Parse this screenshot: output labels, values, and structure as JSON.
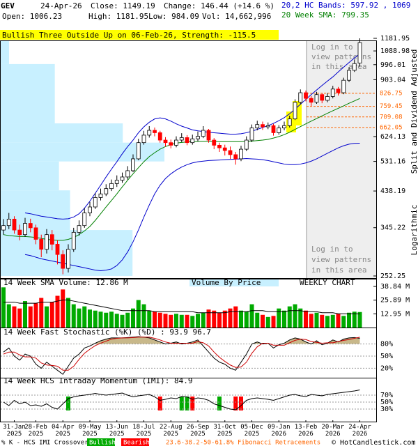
{
  "header": {
    "symbol": "GEV",
    "date": "24-Apr-26",
    "close": "Close: 1149.19",
    "change": "Change: 146.44 (+14.6 %)",
    "bands": "20,2 HC Bands: 597.92 , 1069",
    "open": "Open: 1006.23",
    "high": "High: 1181.95",
    "low": "Low: 984.09",
    "volume": "Vol: 14,662,996",
    "sma": "20 Week SMA: 799.35"
  },
  "pattern_banner": "Bullish Three Outside Up on 06-Feb-26, Strength: -115.5",
  "side_labels": [
    "Split and Dividend Adjusted",
    "Logarithmic"
  ],
  "pattern_notices": [
    [
      "Log in to",
      "view patterns",
      "in this area"
    ],
    [
      "Log in to",
      "view patterns",
      "in this area"
    ]
  ],
  "footer": {
    "crossover": "% K - HCS IMI Crossover:",
    "bullish": "Bullish",
    "bearish": "Bearish",
    "fibonacci": "23.6-38.2-50-61.8% Fibonacci Retracements",
    "copyright": "© HotCandlestick.com"
  },
  "chart_data": [
    {
      "type": "candlestick",
      "categories": [
        null,
        null,
        "31-Jan 2025",
        null,
        null,
        null,
        "28-Feb 2025",
        null,
        null,
        null,
        null,
        "04-Apr 2025",
        null,
        null,
        null,
        null,
        "09-May 2025",
        null,
        null,
        null,
        null,
        "13-Jun 2025",
        null,
        null,
        null,
        null,
        "18-Jul 2025",
        null,
        null,
        null,
        null,
        "22-Aug 2025",
        null,
        null,
        null,
        null,
        "26-Sep 2025",
        null,
        null,
        null,
        null,
        "31-Oct 2025",
        null,
        null,
        null,
        null,
        "05-Dec 2025",
        null,
        null,
        null,
        null,
        "09-Jan 2026",
        null,
        null,
        null,
        null,
        "13-Feb 2026",
        null,
        null,
        null,
        null,
        "20-Mar 2026",
        null,
        null,
        null,
        null,
        "24-Apr 2026"
      ],
      "open": [
        340,
        350,
        365,
        340,
        330,
        355,
        345,
        320,
        300,
        330,
        310,
        290,
        265,
        300,
        335,
        350,
        380,
        395,
        420,
        430,
        445,
        460,
        470,
        480,
        500,
        540,
        600,
        630,
        650,
        640,
        610,
        600,
        590,
        610,
        620,
        600,
        615,
        625,
        650,
        610,
        590,
        580,
        570,
        555,
        540,
        575,
        610,
        660,
        675,
        665,
        670,
        640,
        660,
        670,
        700,
        780,
        830,
        800,
        780,
        820,
        790,
        810,
        850,
        830,
        900,
        960,
        1006.23
      ],
      "high": [
        365,
        380,
        372,
        352,
        368,
        366,
        352,
        330,
        342,
        340,
        318,
        298,
        310,
        345,
        362,
        392,
        408,
        432,
        445,
        458,
        472,
        485,
        494,
        515,
        556,
        615,
        648,
        668,
        662,
        648,
        622,
        612,
        625,
        638,
        630,
        632,
        645,
        668,
        656,
        618,
        600,
        592,
        585,
        565,
        588,
        625,
        675,
        692,
        688,
        684,
        678,
        672,
        688,
        715,
        795,
        848,
        842,
        812,
        835,
        828,
        828,
        868,
        862,
        915,
        980,
        1030,
        1181.95
      ],
      "low": [
        330,
        342,
        332,
        318,
        325,
        335,
        310,
        285,
        292,
        298,
        272,
        255,
        258,
        295,
        328,
        345,
        372,
        390,
        412,
        424,
        438,
        450,
        462,
        472,
        495,
        535,
        592,
        620,
        625,
        600,
        585,
        578,
        582,
        602,
        590,
        592,
        605,
        618,
        600,
        575,
        565,
        552,
        540,
        520,
        532,
        568,
        602,
        650,
        652,
        655,
        628,
        632,
        650,
        662,
        695,
        770,
        785,
        762,
        772,
        775,
        780,
        800,
        815,
        822,
        890,
        950,
        984.09
      ],
      "close": [
        350,
        365,
        340,
        330,
        355,
        345,
        320,
        300,
        330,
        310,
        290,
        265,
        300,
        335,
        350,
        380,
        395,
        420,
        430,
        445,
        460,
        470,
        480,
        500,
        540,
        600,
        630,
        650,
        640,
        610,
        600,
        590,
        610,
        620,
        600,
        615,
        625,
        650,
        610,
        590,
        580,
        570,
        555,
        540,
        575,
        610,
        660,
        675,
        665,
        670,
        640,
        660,
        670,
        700,
        780,
        830,
        800,
        780,
        820,
        790,
        810,
        850,
        830,
        900,
        960,
        1003,
        1149.19
      ],
      "up_color": "#ffffff",
      "down_color": "#ff0000",
      "log_scale": true,
      "ylim": [
        252.25,
        1181.95
      ],
      "yticks": [
        1181.95,
        1088.98,
        996.01,
        903.04,
        624.13,
        531.16,
        438.19,
        345.22,
        252.25
      ],
      "series": [
        {
          "color": "#008000",
          "values": [
            330,
            328,
            327,
            326,
            326,
            325,
            324,
            322,
            320,
            319,
            318,
            318,
            320,
            324,
            330,
            338,
            348,
            362,
            378,
            395,
            412,
            430,
            450,
            470,
            490,
            510,
            530,
            548,
            562,
            575,
            585,
            592,
            598,
            601,
            603,
            604,
            605,
            605,
            605,
            605,
            604,
            604,
            604,
            604,
            604,
            605,
            606,
            608,
            610,
            613,
            618,
            624,
            632,
            642,
            654,
            666,
            678,
            690,
            702,
            714,
            726,
            738,
            750,
            762,
            775,
            787,
            799.35
          ]
        },
        {
          "color": "#0000cc",
          "values": [
            null,
            null,
            null,
            null,
            380,
            378,
            375,
            372,
            370,
            368,
            366,
            365,
            366,
            370,
            378,
            392,
            410,
            432,
            455,
            480,
            505,
            530,
            558,
            585,
            610,
            640,
            665,
            685,
            700,
            705,
            700,
            690,
            678,
            668,
            660,
            652,
            648,
            645,
            642,
            640,
            638,
            636,
            634,
            634,
            636,
            640,
            646,
            654,
            662,
            670,
            680,
            692,
            706,
            724,
            746,
            770,
            795,
            820,
            845,
            870,
            895,
            920,
            950,
            980,
            1010,
            1040,
            1069
          ]
        },
        {
          "color": "#0000cc",
          "values": [
            null,
            null,
            null,
            null,
            290,
            288,
            285,
            282,
            280,
            278,
            276,
            274,
            272,
            270,
            268,
            266,
            264,
            262,
            261,
            262,
            264,
            270,
            280,
            295,
            315,
            340,
            370,
            400,
            430,
            455,
            475,
            490,
            502,
            512,
            520,
            526,
            530,
            532,
            534,
            535,
            536,
            537,
            538,
            539,
            540,
            541,
            540,
            539,
            537,
            534,
            530,
            526,
            522,
            520,
            520,
            522,
            526,
            532,
            540,
            550,
            560,
            570,
            580,
            588,
            594,
            597,
            597.92
          ]
        }
      ],
      "fib_levels": [
        826.75,
        759.45,
        709.08,
        662.05
      ],
      "fib_color": "#ff6600",
      "volume_by_price": {
        "label": "Volume By Price",
        "color": "#c8f0ff",
        "edges": [
          252.25,
          340,
          440,
          531,
          600,
          680,
          760,
          1000,
          1181.95
        ],
        "values": [
          95,
          50,
          42,
          118,
          88,
          39,
          39,
          6
        ]
      }
    },
    {
      "type": "bar",
      "title": "14 Week SMA Volume: 12.86 M",
      "label": "WEEKLY CHART",
      "values": [
        38,
        22,
        20,
        18,
        25,
        20,
        23,
        28,
        20,
        24,
        30,
        36,
        28,
        22,
        18,
        20,
        17,
        16,
        15,
        14,
        15,
        13,
        12,
        14,
        18,
        26,
        22,
        16,
        15,
        14,
        13,
        12,
        13,
        12,
        12,
        11,
        13,
        14,
        17,
        16,
        14,
        16,
        18,
        20,
        16,
        15,
        22,
        14,
        12,
        10,
        11,
        18,
        16,
        20,
        22,
        18,
        16,
        13,
        14,
        12,
        11,
        12,
        13,
        11,
        14,
        15,
        14.66
      ],
      "up_color": "#00aa00",
      "down_color": "#ff0000",
      "ylim": [
        0,
        44.8
      ],
      "yticks": [
        {
          "value": 38.84,
          "label": "38.84 M"
        },
        {
          "value": 25.89,
          "label": "25.89 M"
        },
        {
          "value": 12.95,
          "label": "12.95 M"
        }
      ],
      "series": [
        {
          "color": "#000000",
          "values": [
            24,
            24,
            24,
            23,
            23,
            23,
            23,
            24,
            24,
            24,
            25,
            26,
            26,
            25,
            24,
            23,
            22,
            21,
            20,
            19,
            18,
            17,
            16,
            16,
            16,
            16,
            16,
            16,
            15,
            15,
            15,
            15,
            15,
            15,
            15,
            15,
            14,
            14,
            14,
            14,
            14,
            14,
            15,
            15,
            15,
            15,
            16,
            16,
            16,
            15,
            15,
            15,
            15,
            16,
            16,
            16,
            15,
            15,
            15,
            14,
            14,
            14,
            13,
            13,
            13,
            13,
            12.86
          ]
        }
      ]
    },
    {
      "type": "line",
      "title": "14 Week Fast Stochastic (%K) (%D) : 93.9 96.7",
      "ylim": [
        0,
        100
      ],
      "yticks": [
        {
          "value": 80,
          "label": "80%"
        },
        {
          "value": 50,
          "label": "50%"
        },
        {
          "value": 20,
          "label": "20%"
        }
      ],
      "overbought_fill": "#c8b88a",
      "series": [
        {
          "color": "#000000",
          "values": [
            60,
            70,
            50,
            40,
            55,
            50,
            30,
            20,
            35,
            25,
            15,
            5,
            25,
            45,
            55,
            70,
            75,
            82,
            88,
            92,
            95,
            95,
            95,
            96,
            97,
            98,
            97,
            95,
            90,
            85,
            80,
            82,
            85,
            80,
            82,
            85,
            90,
            75,
            60,
            45,
            35,
            30,
            20,
            15,
            35,
            55,
            80,
            85,
            80,
            82,
            70,
            78,
            82,
            90,
            95,
            92,
            85,
            80,
            88,
            78,
            82,
            90,
            85,
            92,
            95,
            96,
            93.9
          ]
        },
        {
          "color": "#cc0000",
          "values": [
            55,
            60,
            60,
            53,
            48,
            48,
            45,
            33,
            28,
            27,
            25,
            15,
            15,
            25,
            42,
            57,
            67,
            76,
            82,
            87,
            92,
            94,
            95,
            95,
            96,
            97,
            97,
            97,
            94,
            90,
            85,
            82,
            82,
            82,
            82,
            82,
            86,
            83,
            75,
            60,
            47,
            37,
            28,
            22,
            23,
            35,
            57,
            73,
            82,
            82,
            77,
            77,
            77,
            83,
            89,
            92,
            91,
            86,
            84,
            82,
            83,
            83,
            86,
            89,
            91,
            94,
            96.7
          ]
        }
      ]
    },
    {
      "type": "line",
      "title": "14 Week HCS Intraday Momentum (IMI): 84.9",
      "ylim": [
        0,
        100
      ],
      "yticks": [
        {
          "value": 70,
          "label": "70%"
        },
        {
          "value": 50,
          "label": "50%"
        },
        {
          "value": 30,
          "label": "30%"
        }
      ],
      "signal_colors": {
        "bullish": "#00aa00",
        "bearish": "#ff0000"
      },
      "crossovers": [
        {
          "index": 12,
          "signal": "bullish"
        },
        {
          "index": 29,
          "signal": "bearish"
        },
        {
          "index": 33,
          "signal": "bullish"
        },
        {
          "index": 34,
          "signal": "bullish"
        },
        {
          "index": 35,
          "signal": "bearish"
        },
        {
          "index": 40,
          "signal": "bullish"
        },
        {
          "index": 43,
          "signal": "bearish"
        },
        {
          "index": 44,
          "signal": "bearish"
        }
      ],
      "series": [
        {
          "color": "#000000",
          "values": [
            50,
            40,
            55,
            45,
            50,
            40,
            42,
            38,
            45,
            35,
            30,
            45,
            60,
            65,
            68,
            70,
            72,
            75,
            72,
            70,
            72,
            74,
            76,
            70,
            65,
            68,
            70,
            72,
            65,
            55,
            58,
            62,
            60,
            66,
            65,
            58,
            62,
            60,
            55,
            45,
            40,
            35,
            30,
            28,
            40,
            55,
            60,
            62,
            60,
            58,
            55,
            60,
            65,
            70,
            72,
            68,
            66,
            72,
            70,
            68,
            72,
            74,
            76,
            78,
            80,
            82,
            84.9
          ]
        }
      ]
    }
  ]
}
